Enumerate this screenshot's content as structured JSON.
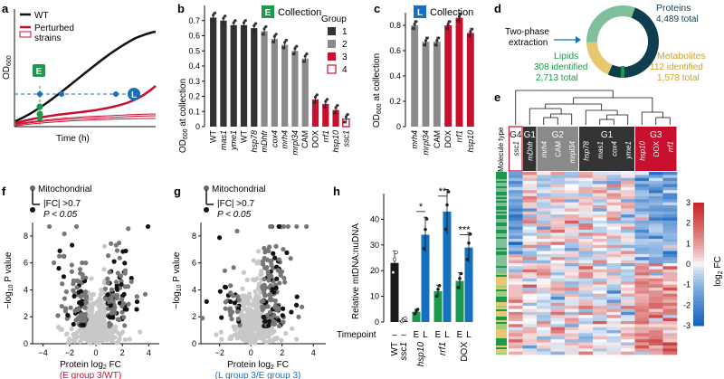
{
  "panel_letters": [
    "a",
    "b",
    "c",
    "d",
    "e",
    "f",
    "g",
    "h"
  ],
  "colors": {
    "black": "#1a1a1a",
    "dark_gray": "#555555",
    "mid_gray": "#8a8a8a",
    "light_gray": "#c8c8c8",
    "red": "#c8102e",
    "green": "#1a9a4a",
    "blue": "#1570c0",
    "donut_dark": "#0f3f4f",
    "donut_green": "#7fbf9a",
    "donut_yellow": "#e6c870",
    "heat_red": "#c62828",
    "heat_blue": "#1565c0"
  },
  "panel_a": {
    "legend": [
      "WT",
      "Perturbed",
      "strains"
    ],
    "ylabel_main": "OD",
    "ylabel_sub": "600",
    "xlabel": "Time (h)",
    "markers": [
      "E",
      "L"
    ]
  },
  "panel_b": {
    "collection_badge": "E",
    "collection_label": "Collection",
    "ylabel": "OD600 at collection",
    "ylabel_main": "OD",
    "ylabel_sub": "600",
    "ylabel_rest": " at collection",
    "legend_title": "Group",
    "legend_items": [
      "1",
      "2",
      "3",
      "4"
    ],
    "chart_data": {
      "type": "bar",
      "title": "E Collection",
      "ylabel": "OD600 at collection",
      "ylim": [
        0,
        0.8
      ],
      "yticks": [
        "0",
        "0.1",
        "0.2",
        "0.3",
        "0.4",
        "0.5",
        "0.6",
        "0.7"
      ],
      "categories": [
        "WT",
        "mas1",
        "yme1",
        "WT",
        "hsp78",
        "mDhfr",
        "cox4",
        "mrh4",
        "mrpl34",
        "CAM",
        "DOX",
        "rrf1",
        "hsp10",
        "ssc1"
      ],
      "values": [
        0.72,
        0.7,
        0.67,
        0.67,
        0.65,
        0.63,
        0.58,
        0.54,
        0.5,
        0.45,
        0.18,
        0.15,
        0.11,
        0.05
      ],
      "groups": [
        1,
        1,
        1,
        1,
        1,
        2,
        2,
        2,
        2,
        2,
        3,
        3,
        3,
        4
      ]
    }
  },
  "panel_c": {
    "collection_badge": "L",
    "collection_label": "Collection",
    "ylabel_main": "OD",
    "ylabel_sub": "600",
    "ylabel_rest": " at collection",
    "chart_data": {
      "type": "bar",
      "title": "L Collection",
      "ylabel": "OD600 at collection",
      "ylim": [
        0,
        0.9
      ],
      "yticks": [
        "0",
        "0.2",
        "0.4",
        "0.6",
        "0.8"
      ],
      "categories": [
        "mrh4",
        "mrpl34",
        "CAM",
        "DOX",
        "rrf1",
        "hsp10"
      ],
      "values": [
        0.8,
        0.67,
        0.67,
        0.8,
        0.86,
        0.74
      ],
      "groups": [
        2,
        2,
        2,
        3,
        3,
        3
      ]
    }
  },
  "panel_d": {
    "extraction_label_1": "Two-phase",
    "extraction_label_2": "extraction",
    "proteins_name": "Proteins",
    "proteins_total": "4,489 total",
    "lipids_name": "Lipids",
    "lipids_identified": "308 identified",
    "lipids_total": "2,713 total",
    "metabolites_name": "Metabolites",
    "metabolites_identified": "112 identified",
    "metabolites_total": "1,578 total",
    "chart_data": {
      "type": "pie",
      "categories": [
        "Proteins",
        "Metabolites",
        "Lipids"
      ],
      "values": [
        4489,
        1578,
        2713
      ]
    }
  },
  "panel_e": {
    "molecule_type_label": "Molecule type",
    "group_labels": [
      "G4",
      "G1",
      "G2",
      "G1",
      "G3"
    ],
    "columns": [
      "ssc1",
      "mDhfr",
      "mrh4",
      "CAM",
      "mrpl34",
      "hsp78",
      "mas1",
      "cox4",
      "yme1",
      "hsp10",
      "DOX",
      "rrf1"
    ],
    "colorbar_ticks": [
      "3",
      "2",
      "1",
      "0",
      "-1",
      "-2",
      "-3"
    ],
    "colorbar_label_main": "log",
    "colorbar_label_sub": "2",
    "colorbar_label_rest": " FC"
  },
  "panel_f": {
    "legend_title": "Mitochondrial",
    "legend_fc": "|FC| >0.7",
    "legend_p": "P < 0.05",
    "ylabel": "−log10 P value",
    "ylabel_pre": "−log",
    "ylabel_sub": "10",
    "ylabel_rest": " P value",
    "yticks": [
      "0",
      "2",
      "4",
      "6",
      "8"
    ],
    "xticks": [
      "−4",
      "−2",
      "0",
      "2",
      "4"
    ],
    "xlabel_main": "Protein log",
    "xlabel_sub": "2",
    "xlabel_rest": " FC",
    "comparison_1": "(E group 3/WT)"
  },
  "panel_g": {
    "legend_title": "Mitochondrial",
    "legend_fc": "|FC| >0.7",
    "legend_p": "P < 0.05",
    "ylabel_pre": "−log",
    "ylabel_sub": "10",
    "ylabel_rest": " P value",
    "yticks": [
      "0",
      "2",
      "4",
      "6",
      "8"
    ],
    "xticks": [
      "−2",
      "0",
      "2",
      "4"
    ],
    "xlabel_main": "Protein log",
    "xlabel_sub": "2",
    "xlabel_rest": " FC",
    "comparison_1": "(L group 3/E group 3)"
  },
  "panel_h": {
    "ylabel_1": "Relative mtDNA:nuDNA",
    "timepoint_label": "Timepoint",
    "timepoints": [
      "–",
      "–",
      "E",
      "L",
      "E",
      "L",
      "E",
      "L"
    ],
    "strain_labels": [
      "WT",
      "ssc1",
      "hsp10",
      "rrf1",
      "DOX"
    ],
    "significance": [
      "*",
      "**",
      "***"
    ],
    "chart_data": {
      "type": "bar",
      "ylabel": "Relative mtDNA:nuDNA",
      "ylim": [
        0,
        50
      ],
      "yticks": [
        "0",
        "10",
        "20",
        "30",
        "40"
      ],
      "categories": [
        "WT –",
        "ssc1 –",
        "hsp10 E",
        "hsp10 L",
        "rrf1 E",
        "rrf1 L",
        "DOX E",
        "DOX L"
      ],
      "values": [
        23,
        0.5,
        4,
        34,
        12,
        43,
        16,
        29
      ],
      "bar_colors": [
        "#1a1a1a",
        "#1a1a1a",
        "#1a9a4a",
        "#1570c0",
        "#1a9a4a",
        "#1570c0",
        "#1a9a4a",
        "#1570c0"
      ]
    }
  }
}
